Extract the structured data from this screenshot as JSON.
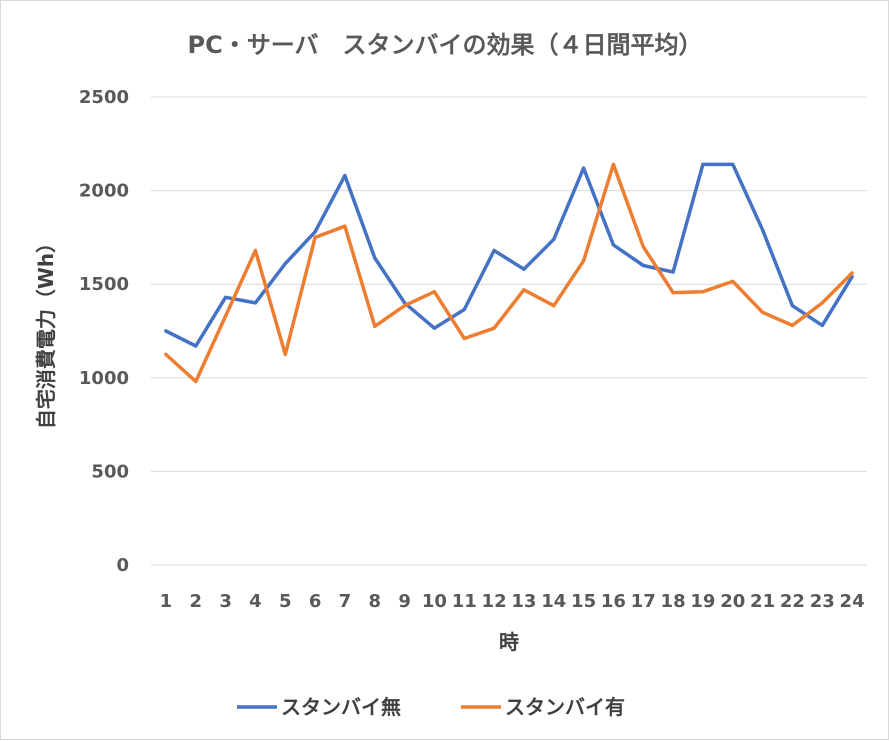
{
  "chart_data": {
    "type": "line",
    "title": "PC・サーバ　スタンバイの効果（４日間平均）",
    "xlabel": "時",
    "ylabel": "自宅消費電力（Wh）",
    "ylim": [
      0,
      2500
    ],
    "yticks": [
      0,
      500,
      1000,
      1500,
      2000,
      2500
    ],
    "grid": true,
    "legend_position": "bottom",
    "categories": [
      "1",
      "2",
      "3",
      "4",
      "5",
      "6",
      "7",
      "8",
      "9",
      "10",
      "11",
      "12",
      "13",
      "14",
      "15",
      "16",
      "17",
      "18",
      "19",
      "20",
      "21",
      "22",
      "23",
      "24"
    ],
    "series": [
      {
        "name": "スタンバイ無",
        "color": "#4472c4",
        "values": [
          1250,
          1170,
          1430,
          1400,
          1610,
          1780,
          2080,
          1640,
          1400,
          1265,
          1365,
          1680,
          1580,
          1740,
          2120,
          1710,
          1600,
          1565,
          2140,
          2140,
          1790,
          1385,
          1280,
          1540
        ]
      },
      {
        "name": "スタンバイ有",
        "color": "#ed7d31",
        "values": [
          1125,
          980,
          1330,
          1680,
          1125,
          1750,
          1810,
          1275,
          1385,
          1460,
          1210,
          1265,
          1470,
          1385,
          1625,
          2140,
          1700,
          1455,
          1460,
          1515,
          1350,
          1280,
          1400,
          1560
        ]
      }
    ]
  }
}
